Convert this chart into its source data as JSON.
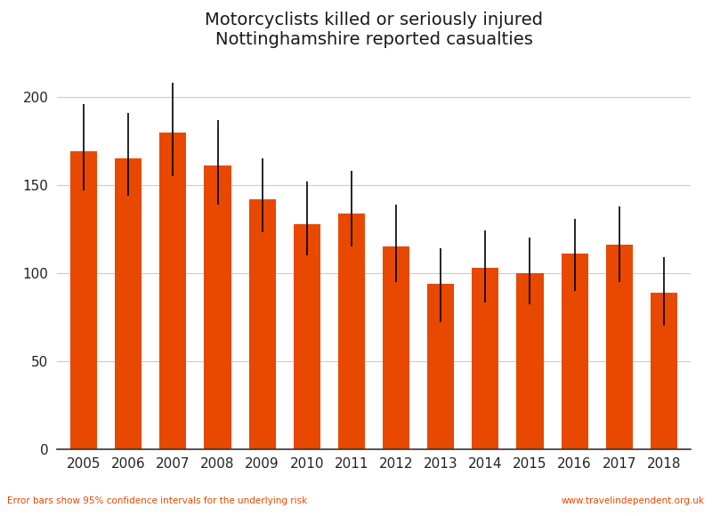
{
  "title_line1": "Motorcyclists killed or seriously injured",
  "title_line2": "Nottinghamshire reported casualties",
  "years": [
    2005,
    2006,
    2007,
    2008,
    2009,
    2010,
    2011,
    2012,
    2013,
    2014,
    2015,
    2016,
    2017,
    2018
  ],
  "values": [
    169,
    165,
    180,
    161,
    142,
    128,
    134,
    115,
    94,
    103,
    100,
    111,
    116,
    89
  ],
  "err_low": [
    22,
    21,
    25,
    22,
    19,
    18,
    19,
    20,
    22,
    20,
    18,
    21,
    21,
    19
  ],
  "err_high": [
    27,
    26,
    28,
    26,
    23,
    24,
    24,
    24,
    20,
    21,
    20,
    20,
    22,
    20
  ],
  "bar_color": "#E84800",
  "error_color": "#000000",
  "ylim": [
    0,
    220
  ],
  "yticks": [
    0,
    50,
    100,
    150,
    200
  ],
  "footnote_left": "Error bars show 95% confidence intervals for the underlying risk",
  "footnote_right": "www.travelindependent.org.uk",
  "footnote_color": "#E84800",
  "background_color": "#ffffff",
  "title_color": "#1a1a1a"
}
